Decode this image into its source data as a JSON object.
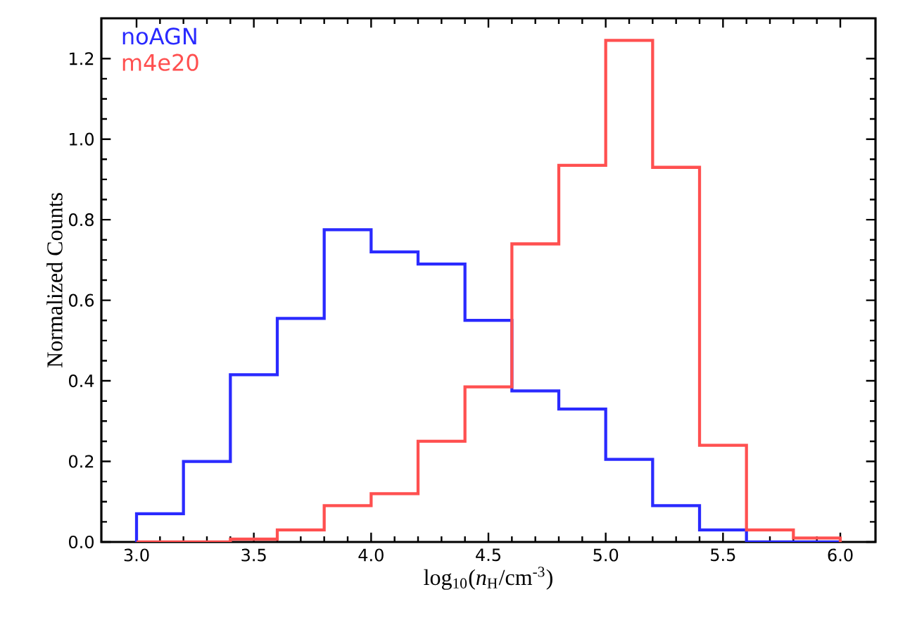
{
  "chart_data": {
    "type": "histogram",
    "xlabel": "log$_{10}$(*n*$_{H}$/cm$^{-3}$)",
    "ylabel": "Normalized Counts",
    "bins": [
      3.0,
      3.2,
      3.4,
      3.6,
      3.8,
      4.0,
      4.2,
      4.4,
      4.6,
      4.8,
      5.0,
      5.2,
      5.4,
      5.6,
      5.8,
      6.0
    ],
    "series": [
      {
        "name": "noAGN",
        "color": "#2a2aff",
        "values": [
          0.07,
          0.2,
          0.415,
          0.555,
          0.775,
          0.72,
          0.69,
          0.55,
          0.375,
          0.33,
          0.205,
          0.09,
          0.03,
          0.0,
          0.0
        ]
      },
      {
        "name": "m4e20",
        "color": "#ff5050",
        "values": [
          0.0,
          0.0,
          0.007,
          0.03,
          0.09,
          0.12,
          0.25,
          0.385,
          0.74,
          0.935,
          1.245,
          0.93,
          0.24,
          0.03,
          0.01
        ]
      }
    ],
    "xlim": [
      2.85,
      6.15
    ],
    "ylim": [
      0,
      1.3
    ],
    "xticks": [
      {
        "value": 3.0,
        "label": "3.0"
      },
      {
        "value": 3.5,
        "label": "3.5"
      },
      {
        "value": 4.0,
        "label": "4.0"
      },
      {
        "value": 4.5,
        "label": "4.5"
      },
      {
        "value": 5.0,
        "label": "5.0"
      },
      {
        "value": 5.5,
        "label": "5.5"
      },
      {
        "value": 6.0,
        "label": "6.0"
      }
    ],
    "yticks": [
      {
        "value": 0.0,
        "label": "0.0"
      },
      {
        "value": 0.2,
        "label": "0.2"
      },
      {
        "value": 0.4,
        "label": "0.4"
      },
      {
        "value": 0.6,
        "label": "0.6"
      },
      {
        "value": 0.8,
        "label": "0.8"
      },
      {
        "value": 1.0,
        "label": "1.0"
      },
      {
        "value": 1.2,
        "label": "1.2"
      }
    ],
    "legend": "top left",
    "grid": false
  }
}
